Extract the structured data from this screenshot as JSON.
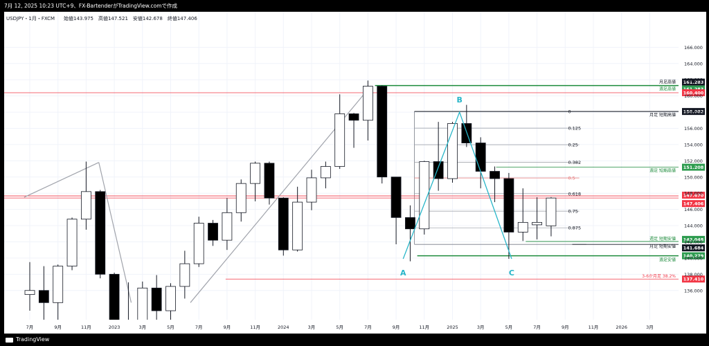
{
  "header": {
    "caption": "7月 12, 2025 10:23 UTC+9、FX-BartenderがTradingView.comで作成",
    "legend_symbol": "USDJPY・1月・FXCM",
    "legend_ohlc": "始値143.975　高値147.521　安値142.678　終値147.406"
  },
  "footer": {
    "brand": "TradingView"
  },
  "chart_data": {
    "type": "candlestick",
    "symbol": "USDJPY",
    "interval": "1月",
    "source": "FXCM",
    "ylim": [
      134.5,
      167.5
    ],
    "yticks": [
      136.0,
      138.0,
      140.0,
      142.0,
      144.0,
      146.0,
      148.0,
      150.0,
      152.0,
      154.0,
      156.0,
      158.0,
      160.0,
      162.0,
      164.0,
      166.0
    ],
    "xticks": [
      {
        "i": 0,
        "label": "7月"
      },
      {
        "i": 2,
        "label": "9月"
      },
      {
        "i": 4,
        "label": "11月"
      },
      {
        "i": 6,
        "label": "2023"
      },
      {
        "i": 8,
        "label": "3月"
      },
      {
        "i": 10,
        "label": "5月"
      },
      {
        "i": 12,
        "label": "7月"
      },
      {
        "i": 14,
        "label": "9月"
      },
      {
        "i": 16,
        "label": "11月"
      },
      {
        "i": 18,
        "label": "2024"
      },
      {
        "i": 20,
        "label": "3月"
      },
      {
        "i": 22,
        "label": "5月"
      },
      {
        "i": 24,
        "label": "7月"
      },
      {
        "i": 26,
        "label": "9月"
      },
      {
        "i": 28,
        "label": "11月"
      },
      {
        "i": 30,
        "label": "2025"
      },
      {
        "i": 32,
        "label": "3月"
      },
      {
        "i": 34,
        "label": "5月"
      },
      {
        "i": 36,
        "label": "7月"
      },
      {
        "i": 38,
        "label": "9月"
      },
      {
        "i": 40,
        "label": "11月"
      },
      {
        "i": 42,
        "label": "2026"
      },
      {
        "i": 44,
        "label": "3月"
      }
    ],
    "candles": [
      {
        "o": 135.5,
        "h": 139.5,
        "l": 133.5,
        "c": 136.0
      },
      {
        "o": 136.0,
        "h": 139.0,
        "l": 131.0,
        "c": 134.5
      },
      {
        "o": 134.5,
        "h": 139.2,
        "l": 131.5,
        "c": 139.0
      },
      {
        "o": 139.0,
        "h": 145.0,
        "l": 138.5,
        "c": 144.8
      },
      {
        "o": 144.8,
        "h": 151.9,
        "l": 143.5,
        "c": 148.2
      },
      {
        "o": 148.2,
        "h": 148.4,
        "l": 137.5,
        "c": 138.0
      },
      {
        "o": 138.0,
        "h": 138.2,
        "l": 127.2,
        "c": 131.0
      },
      {
        "o": 131.0,
        "h": 137.0,
        "l": 127.0,
        "c": 130.0
      },
      {
        "o": 130.0,
        "h": 137.1,
        "l": 130.0,
        "c": 136.3
      },
      {
        "o": 136.3,
        "h": 137.9,
        "l": 132.0,
        "c": 133.5
      },
      {
        "o": 133.5,
        "h": 136.9,
        "l": 130.5,
        "c": 136.5
      },
      {
        "o": 136.5,
        "h": 140.9,
        "l": 135.0,
        "c": 139.3
      },
      {
        "o": 139.3,
        "h": 145.1,
        "l": 138.9,
        "c": 144.3
      },
      {
        "o": 144.3,
        "h": 144.7,
        "l": 141.5,
        "c": 142.2
      },
      {
        "o": 142.2,
        "h": 147.4,
        "l": 141.0,
        "c": 145.6
      },
      {
        "o": 145.6,
        "h": 149.7,
        "l": 144.5,
        "c": 149.2
      },
      {
        "o": 149.2,
        "h": 151.9,
        "l": 147.0,
        "c": 151.7
      },
      {
        "o": 151.7,
        "h": 151.9,
        "l": 146.6,
        "c": 147.4
      },
      {
        "o": 147.4,
        "h": 147.5,
        "l": 140.3,
        "c": 141.0
      },
      {
        "o": 141.0,
        "h": 148.8,
        "l": 140.8,
        "c": 146.9
      },
      {
        "o": 146.9,
        "h": 150.9,
        "l": 145.9,
        "c": 149.9
      },
      {
        "o": 149.9,
        "h": 151.9,
        "l": 148.6,
        "c": 151.3
      },
      {
        "o": 151.3,
        "h": 160.2,
        "l": 151.0,
        "c": 157.8
      },
      {
        "o": 157.8,
        "h": 157.9,
        "l": 153.6,
        "c": 157.0
      },
      {
        "o": 157.0,
        "h": 161.9,
        "l": 154.5,
        "c": 161.2
      },
      {
        "o": 161.2,
        "h": 161.3,
        "l": 149.2,
        "c": 150.0
      },
      {
        "o": 150.0,
        "h": 150.0,
        "l": 141.7,
        "c": 145.0
      },
      {
        "o": 145.0,
        "h": 146.5,
        "l": 139.6,
        "c": 143.6
      },
      {
        "o": 143.6,
        "h": 152.0,
        "l": 142.9,
        "c": 151.9
      },
      {
        "o": 151.9,
        "h": 156.8,
        "l": 148.3,
        "c": 149.8
      },
      {
        "o": 149.8,
        "h": 156.8,
        "l": 149.3,
        "c": 156.6
      },
      {
        "o": 156.6,
        "h": 158.9,
        "l": 153.7,
        "c": 154.2
      },
      {
        "o": 154.2,
        "h": 154.9,
        "l": 148.6,
        "c": 150.7
      },
      {
        "o": 150.7,
        "h": 151.3,
        "l": 146.9,
        "c": 149.8
      },
      {
        "o": 149.8,
        "h": 150.5,
        "l": 139.9,
        "c": 143.2
      },
      {
        "o": 143.2,
        "h": 148.6,
        "l": 142.1,
        "c": 144.4
      },
      {
        "o": 144.1,
        "h": 147.5,
        "l": 142.3,
        "c": 144.4
      },
      {
        "o": 143.975,
        "h": 147.521,
        "l": 142.678,
        "c": 147.406
      }
    ],
    "horizontal_levels": [
      {
        "price": 161.283,
        "label": "月足高値",
        "tag": "161.283",
        "style": "black"
      },
      {
        "price": 161.283,
        "label": "週足高値",
        "tag": "161.283",
        "style": "green"
      },
      {
        "price": 160.4,
        "label": "",
        "tag": "160.400",
        "style": "red"
      },
      {
        "price": 158.082,
        "label": "月足 短期高値",
        "tag": "158.082",
        "style": "black"
      },
      {
        "price": 151.208,
        "label": "週足 短期高値",
        "tag": "151.208",
        "style": "green"
      },
      {
        "price": 147.67,
        "label": "",
        "tag": "147.670",
        "style": "red"
      },
      {
        "price": 147.406,
        "label": "",
        "tag": "147.406",
        "style": "red"
      },
      {
        "price": 142.048,
        "label": "週足 短期安値",
        "tag": "142.048",
        "style": "green"
      },
      {
        "price": 141.684,
        "label": "月足 短期安値",
        "tag": "141.684",
        "style": "black"
      },
      {
        "price": 140.279,
        "label": "週足安値",
        "tag": "140.279",
        "style": "green"
      },
      {
        "price": 137.41,
        "label": "3-6か月足 38.2%",
        "tag": "137.410",
        "style": "red"
      }
    ],
    "fibonacci": {
      "high": 158.082,
      "low": 141.684,
      "levels": [
        {
          "ratio": "0",
          "value": 158.082
        },
        {
          "ratio": "0.125",
          "value": 156.032
        },
        {
          "ratio": "0.25",
          "value": 153.983
        },
        {
          "ratio": "0.382",
          "value": 151.818
        },
        {
          "ratio": "0.5",
          "value": 149.883
        },
        {
          "ratio": "0.618",
          "value": 147.948
        },
        {
          "ratio": "0.75",
          "value": 145.784
        },
        {
          "ratio": "0.875",
          "value": 143.734
        }
      ]
    },
    "abc_pattern": [
      {
        "label": "A",
        "i": 26.5,
        "price": 139.9
      },
      {
        "label": "B",
        "i": 30.5,
        "price": 158.0
      },
      {
        "label": "C",
        "i": 34.2,
        "price": 139.9
      }
    ],
    "trend_lines": [
      {
        "from": {
          "i": -0.4,
          "price": 147.5
        },
        "to": {
          "i": 4.9,
          "price": 151.8
        }
      },
      {
        "from": {
          "i": 4.9,
          "price": 151.8
        },
        "to": {
          "i": 7.2,
          "price": 134.5
        }
      },
      {
        "from": {
          "i": 11.4,
          "price": 134.5
        },
        "to": {
          "i": 24.0,
          "price": 160.8
        }
      }
    ]
  }
}
